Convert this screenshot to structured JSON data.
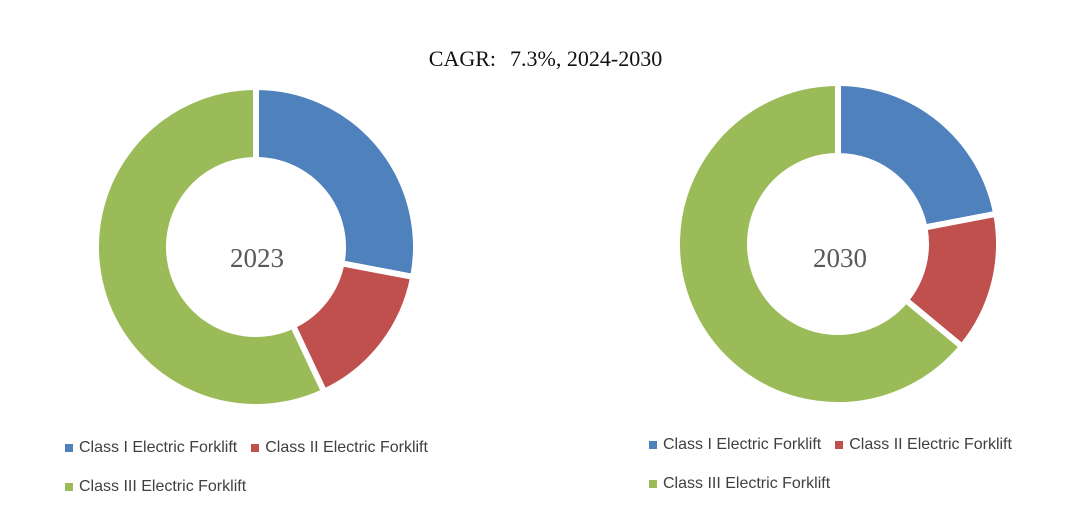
{
  "title": {
    "label": "CAGR:",
    "value": "7.3%, 2024-2030"
  },
  "colors": {
    "class1": "#4F81BD",
    "class2": "#C0504D",
    "class3": "#9BBB59"
  },
  "chart_data": [
    {
      "type": "pie",
      "variant": "donut",
      "center_label": "2023",
      "categories": [
        "Class I Electric Forklift",
        "Class II Electric Forklift",
        "Class III Electric Forklift"
      ],
      "values": [
        28,
        15,
        57
      ]
    },
    {
      "type": "pie",
      "variant": "donut",
      "center_label": "2030",
      "categories": [
        "Class I Electric Forklift",
        "Class II Electric Forklift",
        "Class III Electric Forklift"
      ],
      "values": [
        22,
        14,
        64
      ]
    }
  ],
  "legend": {
    "left": [
      "Class I Electric Forklift",
      "Class II Electric Forklift",
      "Class III Electric Forklift"
    ],
    "right": [
      "Class I Electric Forklift",
      "Class II Electric Forklift",
      "Class III Electric Forklift"
    ]
  }
}
